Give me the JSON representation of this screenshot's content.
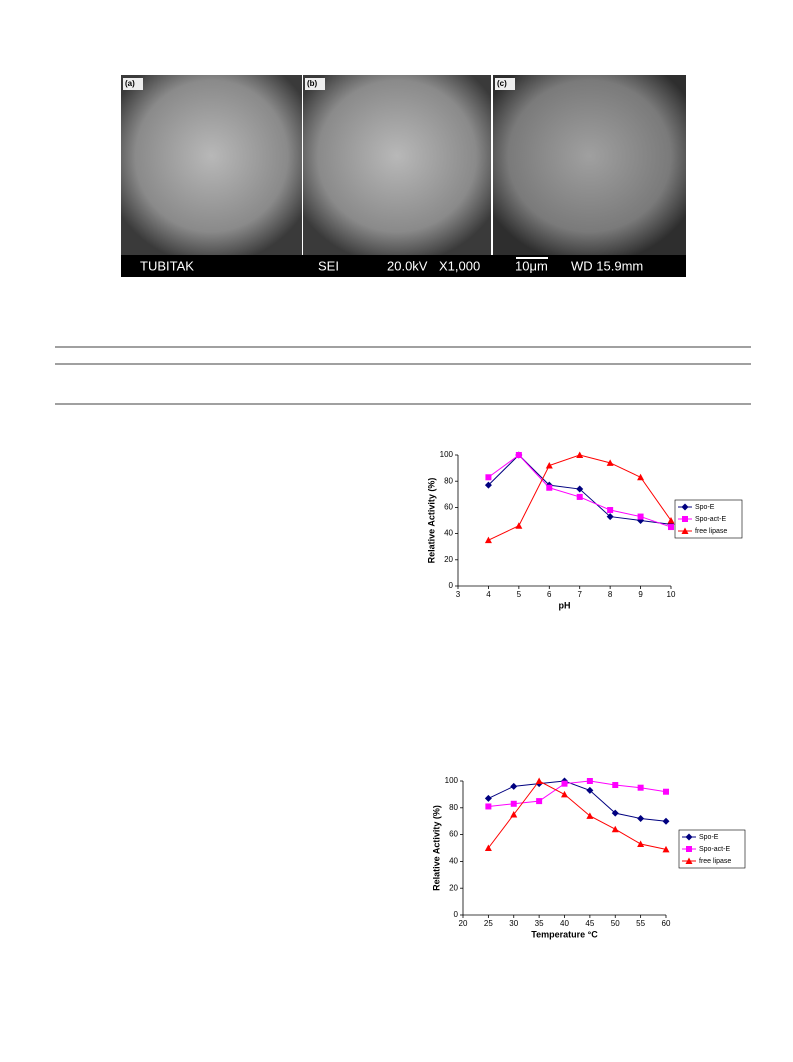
{
  "figure": {
    "panels": [
      "(a)",
      "(b)",
      "(c)"
    ],
    "scale_bar": [
      "TUBITAK",
      "SEI",
      "20.0kV",
      "X1,000",
      "10μm",
      "WD 15.9mm"
    ]
  },
  "chart_data": [
    {
      "type": "line",
      "xlabel": "pH",
      "ylabel": "Relative Activity (%)",
      "x": [
        4,
        5,
        6,
        7,
        8,
        9,
        10
      ],
      "series": [
        {
          "name": "Spo-E",
          "color": "#000080",
          "marker": "diamond",
          "values": [
            77,
            100,
            77,
            74,
            53,
            50,
            47
          ]
        },
        {
          "name": "Spo-act-E",
          "color": "#ff00ff",
          "marker": "square",
          "values": [
            83,
            100,
            75,
            68,
            58,
            53,
            45
          ]
        },
        {
          "name": "free lipase",
          "color": "#ff0000",
          "marker": "triangle",
          "values": [
            35,
            46,
            92,
            100,
            94,
            83,
            50
          ]
        }
      ],
      "xlim": [
        3,
        10
      ],
      "xticks": [
        3,
        4,
        5,
        6,
        7,
        8,
        9,
        10
      ],
      "ylim": [
        0,
        100
      ],
      "yticks": [
        0,
        20,
        40,
        60,
        80,
        100
      ],
      "legend": "right"
    },
    {
      "type": "line",
      "xlabel": "Temperature °C",
      "ylabel": "Relative Activity (%)",
      "x": [
        25,
        30,
        35,
        40,
        45,
        50,
        55,
        60
      ],
      "series": [
        {
          "name": "Spo-E",
          "color": "#000080",
          "marker": "diamond",
          "values": [
            87,
            96,
            98,
            100,
            93,
            76,
            72,
            70
          ]
        },
        {
          "name": "Spo-act-E",
          "color": "#ff00ff",
          "marker": "square",
          "values": [
            81,
            83,
            85,
            98,
            100,
            97,
            95,
            92
          ]
        },
        {
          "name": "free lipase",
          "color": "#ff0000",
          "marker": "triangle",
          "values": [
            50,
            75,
            100,
            90,
            74,
            64,
            53,
            49
          ]
        }
      ],
      "xlim": [
        20,
        60
      ],
      "xticks": [
        20,
        25,
        30,
        35,
        40,
        45,
        50,
        55,
        60
      ],
      "ylim": [
        0,
        100
      ],
      "yticks": [
        0,
        20,
        40,
        60,
        80,
        100
      ],
      "legend": "right"
    }
  ]
}
